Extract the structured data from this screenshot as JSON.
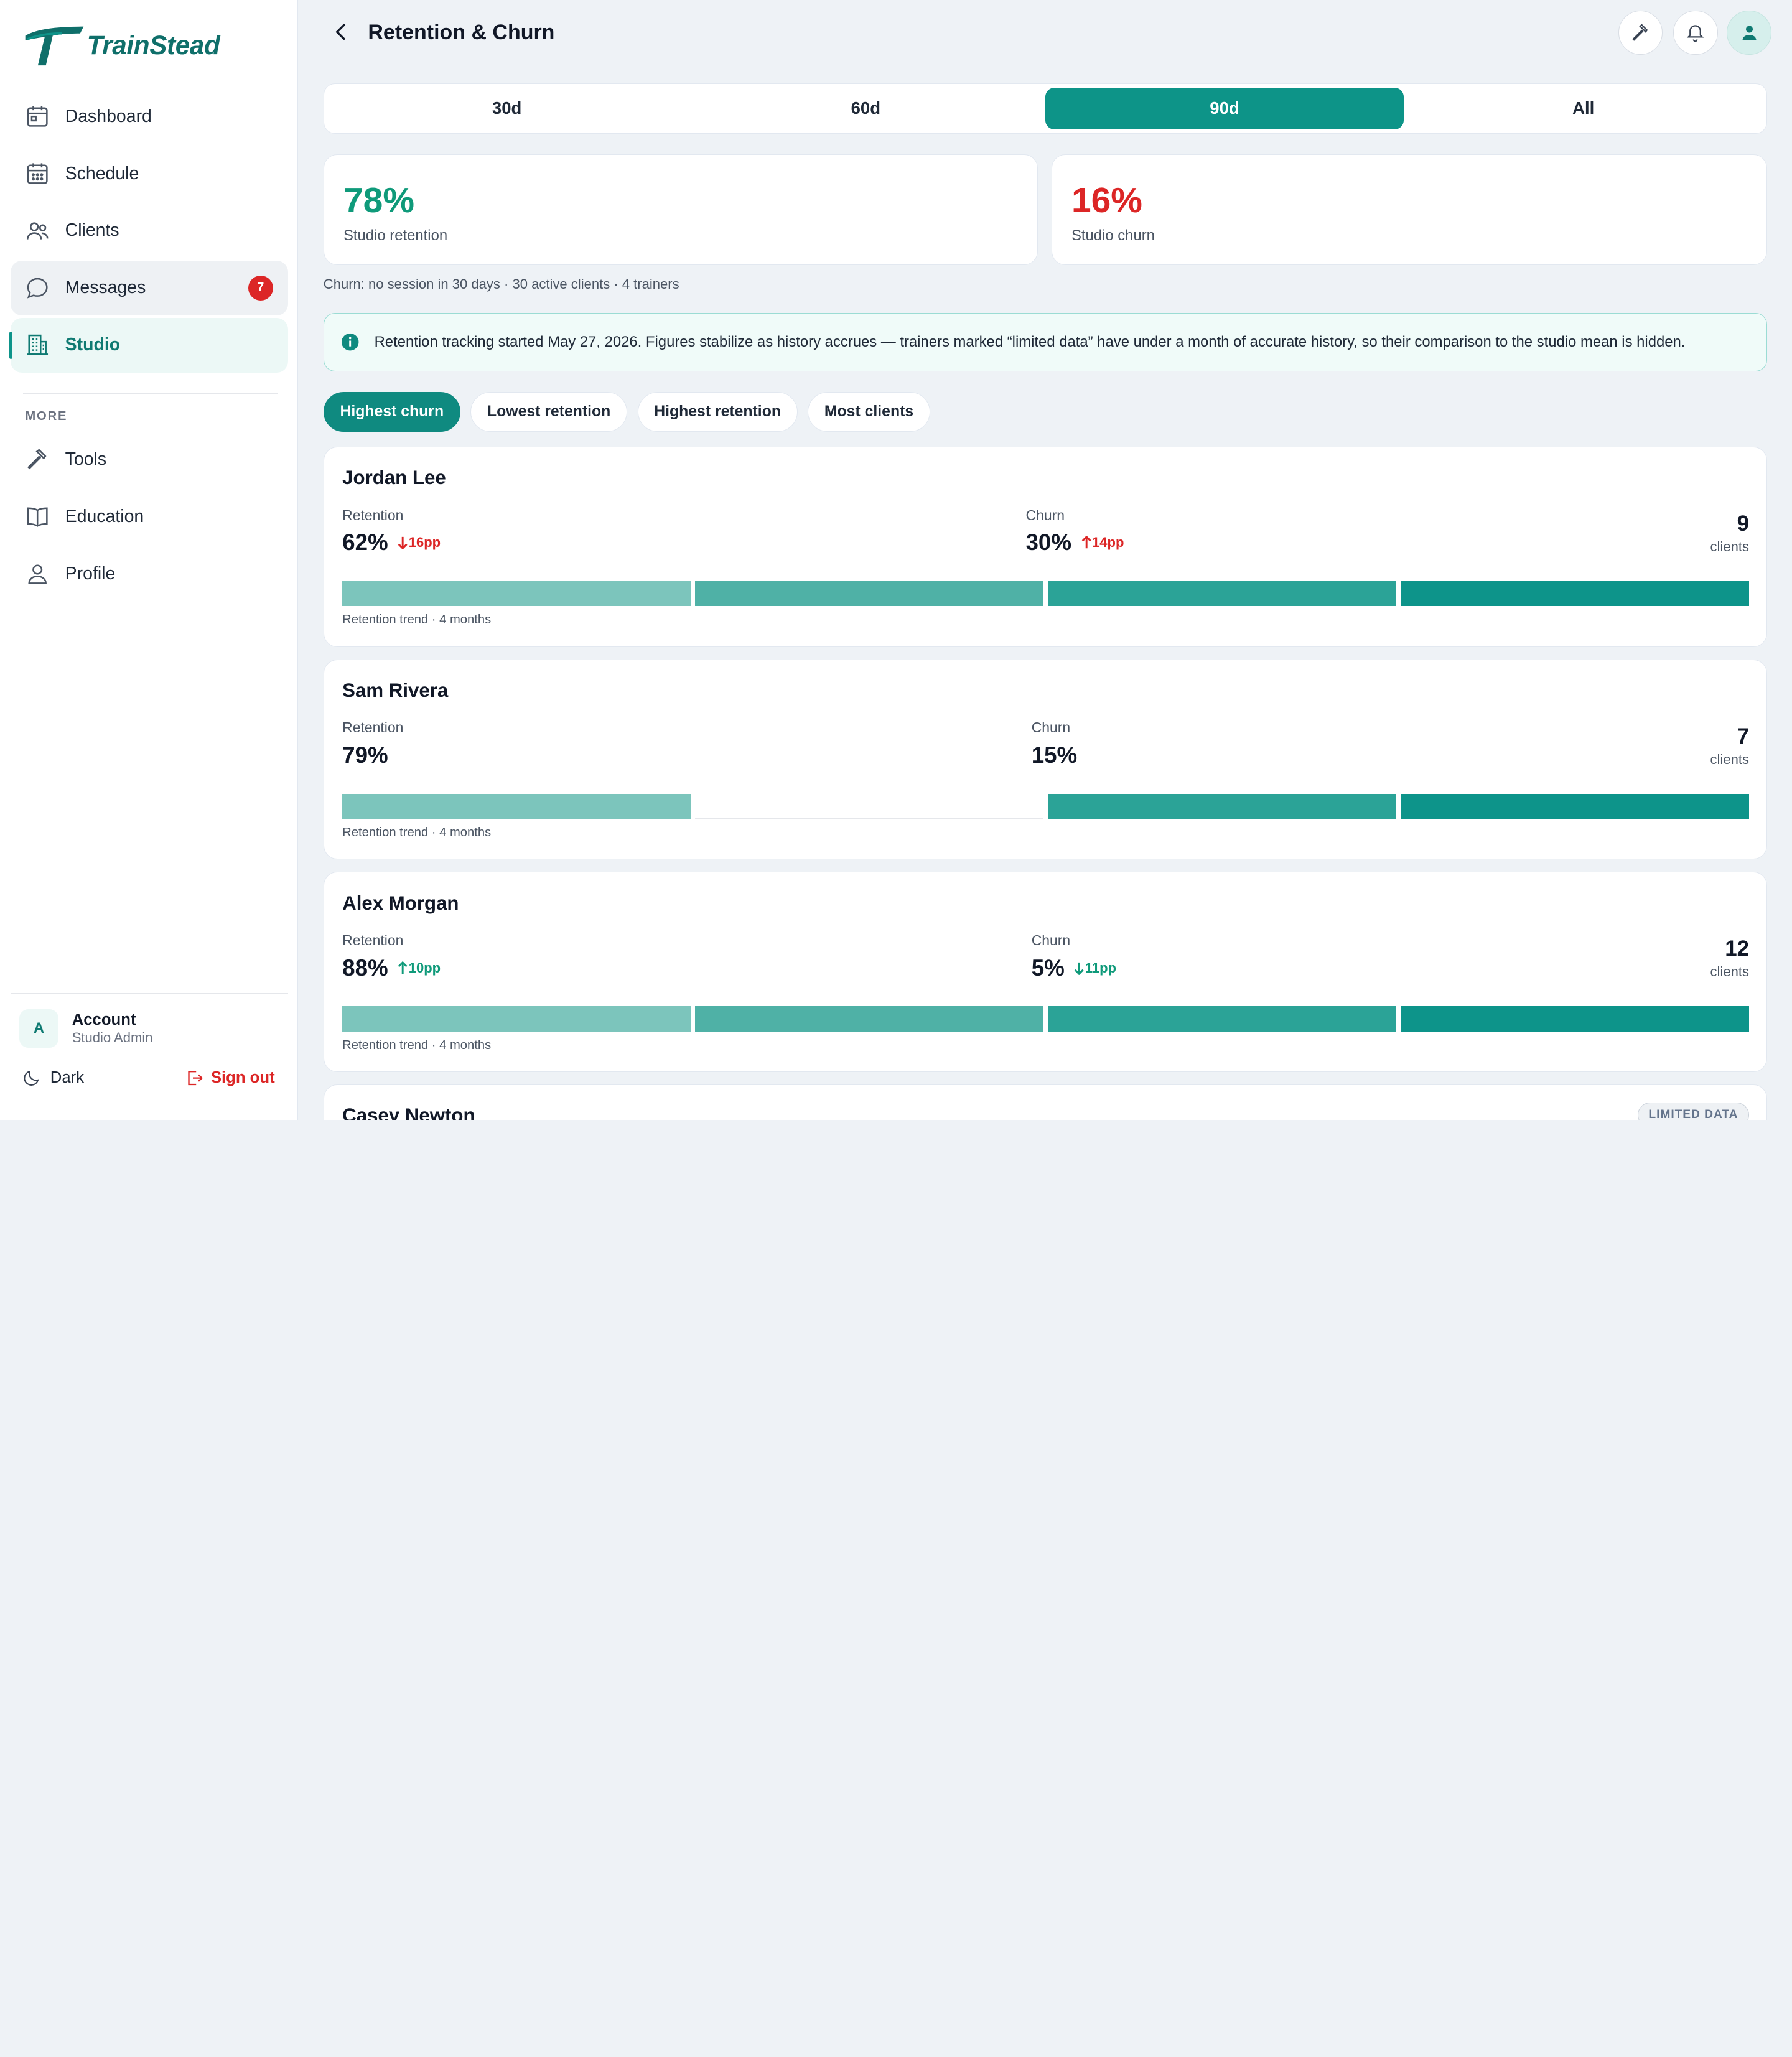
{
  "brand": {
    "name": "TrainStead",
    "color": "#0f6f6a",
    "accent": "#0d9488",
    "danger": "#dc2626"
  },
  "sidebar": {
    "items": [
      {
        "label": "Dashboard",
        "icon": "dashboard-icon"
      },
      {
        "label": "Schedule",
        "icon": "calendar-icon"
      },
      {
        "label": "Clients",
        "icon": "users-icon"
      },
      {
        "label": "Messages",
        "icon": "chat-icon",
        "badge": "7"
      },
      {
        "label": "Studio",
        "icon": "building-icon",
        "active": true
      }
    ],
    "more_label": "MORE",
    "more_items": [
      {
        "label": "Tools",
        "icon": "hammer-icon"
      },
      {
        "label": "Education",
        "icon": "book-icon"
      },
      {
        "label": "Profile",
        "icon": "person-icon"
      }
    ],
    "account": {
      "initial": "A",
      "name": "Account",
      "role": "Studio Admin"
    },
    "dark_label": "Dark",
    "signout_label": "Sign out"
  },
  "header": {
    "title": "Retention & Churn"
  },
  "ranges": [
    {
      "label": "30d"
    },
    {
      "label": "60d"
    },
    {
      "label": "90d",
      "active": true
    },
    {
      "label": "All"
    }
  ],
  "stats": {
    "retention": {
      "value": "78%",
      "label": "Studio retention",
      "color": "#0f9a7a"
    },
    "churn": {
      "value": "16%",
      "label": "Studio churn",
      "color": "#dc2626"
    }
  },
  "note": "Churn: no session in 30 days · 30 active clients · 4 trainers",
  "info": "Retention tracking started May 27, 2026. Figures stabilize as history accrues — trainers marked “limited data” have under a month of accurate history, so their comparison to the studio mean is hidden.",
  "sort_chips": [
    {
      "label": "Highest churn",
      "active": true
    },
    {
      "label": "Lowest retention"
    },
    {
      "label": "Highest retention"
    },
    {
      "label": "Most clients"
    }
  ],
  "labels": {
    "retention": "Retention",
    "churn": "Churn",
    "clients": "clients",
    "trend": "Retention trend · 4 months",
    "limited": "LIMITED DATA"
  },
  "trainers": [
    {
      "name": "Jordan Lee",
      "retention": "62%",
      "retention_delta": "16pp",
      "retention_dir": "down",
      "churn": "30%",
      "churn_delta": "14pp",
      "churn_dir": "up",
      "clients": "9",
      "trend": [
        true,
        true,
        true,
        true
      ]
    },
    {
      "name": "Sam Rivera",
      "retention": "79%",
      "retention_delta": "",
      "retention_dir": "",
      "churn": "15%",
      "churn_delta": "",
      "churn_dir": "",
      "clients": "7",
      "trend": [
        true,
        false,
        true,
        true
      ]
    },
    {
      "name": "Alex Morgan",
      "retention": "88%",
      "retention_delta": "10pp",
      "retention_dir": "up",
      "churn": "5%",
      "churn_delta": "11pp",
      "churn_dir": "down",
      "clients": "12",
      "trend": [
        true,
        true,
        true,
        true
      ]
    },
    {
      "name": "Casey Newton",
      "limited": true
    }
  ],
  "trend_colors": [
    "#7cc5bc",
    "#4fb1a6",
    "#2ba397",
    "#0d948a"
  ]
}
